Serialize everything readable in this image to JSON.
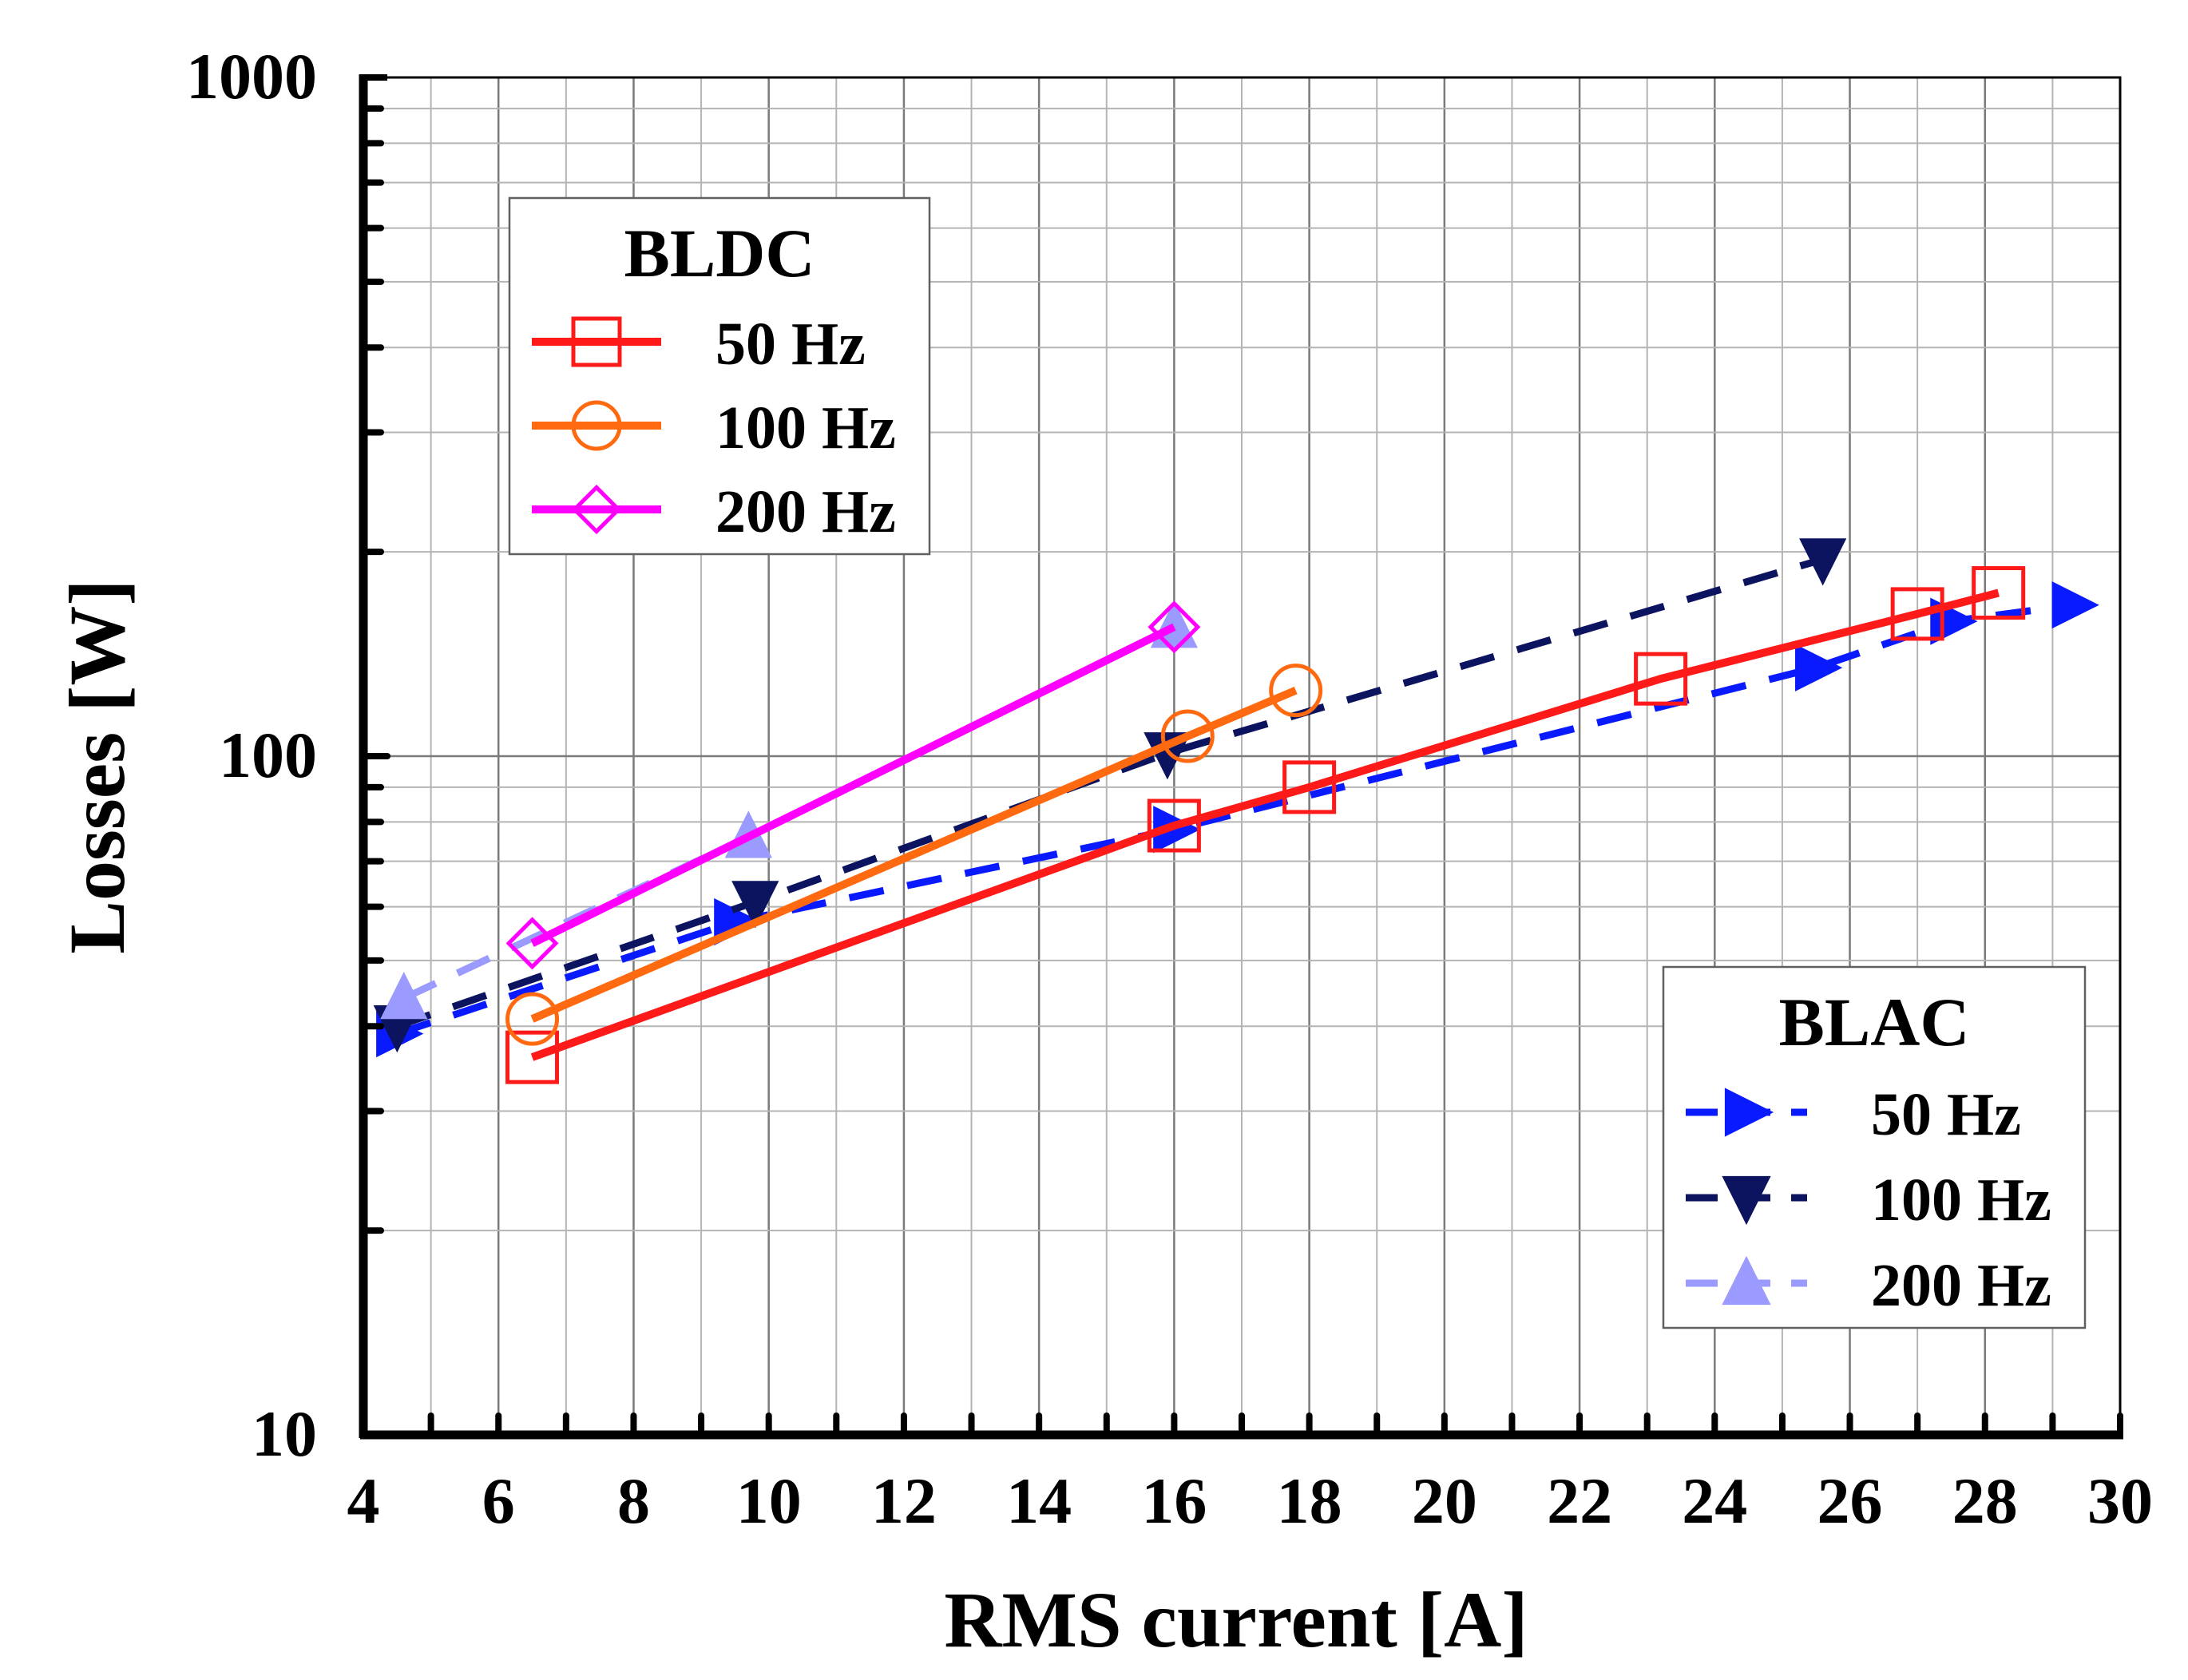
{
  "chart_data": {
    "type": "line",
    "title": "",
    "xlabel": "RMS current [A]",
    "ylabel": "Losses [W]",
    "xlim": [
      4,
      30
    ],
    "ylim": [
      10,
      1000
    ],
    "yscale": "log",
    "grid": true,
    "x_tick_labels": [
      "4",
      "6",
      "8",
      "10",
      "12",
      "14",
      "16",
      "18",
      "20",
      "22",
      "24",
      "26",
      "28",
      "30"
    ],
    "y_tick_labels": [
      "10",
      "100",
      "1000"
    ],
    "legends": [
      {
        "title": "BLDC",
        "placement": "top-left",
        "entries": [
          "50 Hz",
          "100 Hz",
          "200 Hz"
        ]
      },
      {
        "title": "BLAC",
        "placement": "bottom-right",
        "entries": [
          "50 Hz",
          "100 Hz",
          "200 Hz"
        ]
      }
    ],
    "series": [
      {
        "name": "50 Hz",
        "group": "BLDC",
        "color": "#ff1a1a",
        "style": "solid",
        "marker": "square-open",
        "x": [
          6.5,
          16.0,
          18.0,
          23.2,
          27.0,
          28.2
        ],
        "y": [
          36,
          79,
          90,
          130,
          162,
          174
        ]
      },
      {
        "name": "100 Hz",
        "group": "BLDC",
        "color": "#ff6a10",
        "style": "solid",
        "marker": "circle-open",
        "x": [
          6.5,
          16.2,
          17.8
        ],
        "y": [
          41,
          107,
          125
        ]
      },
      {
        "name": "200 Hz",
        "group": "BLDC",
        "color": "#ff00ff",
        "style": "solid",
        "marker": "diamond-open",
        "x": [
          6.5,
          16.0
        ],
        "y": [
          53,
          155
        ]
      },
      {
        "name": "50 Hz",
        "group": "BLAC",
        "color": "#0a1aff",
        "style": "dashed",
        "marker": "triangle-right",
        "x": [
          4.5,
          9.5,
          16.0,
          25.5,
          27.5,
          29.3
        ],
        "y": [
          39,
          57,
          78,
          135,
          158,
          167
        ]
      },
      {
        "name": "100 Hz",
        "group": "BLAC",
        "color": "#0c1460",
        "style": "dashed",
        "marker": "triangle-down",
        "x": [
          4.5,
          9.8,
          15.9,
          25.6
        ],
        "y": [
          40,
          61,
          101,
          195
        ]
      },
      {
        "name": "200 Hz",
        "group": "BLAC",
        "color": "#9a9aff",
        "style": "dashed",
        "marker": "triangle-up",
        "x": [
          4.6,
          9.7,
          16.0
        ],
        "y": [
          44,
          76,
          155
        ]
      }
    ]
  }
}
